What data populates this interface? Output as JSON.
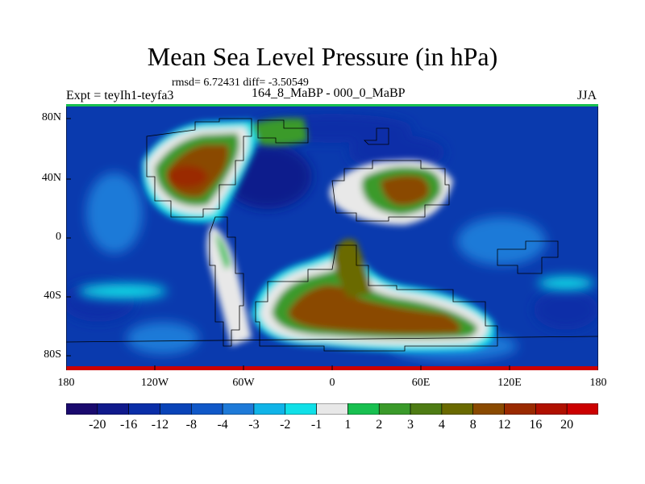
{
  "header": {
    "title": "Mean Sea Level Pressure (in hPa)",
    "stats": "rmsd= 6.72431 diff= -3.50549",
    "left_label": "Expt = teyIh1-teyfa3",
    "center_label": "164_8_MaBP - 000_0_MaBP",
    "right_label": "JJA"
  },
  "axes": {
    "lon_ticks": [
      "180",
      "120W",
      "60W",
      "0",
      "60E",
      "120E",
      "180"
    ],
    "lat_ticks": [
      "80N",
      "40N",
      "0",
      "40S",
      "80S"
    ]
  },
  "colorbar": {
    "labels": [
      "-20",
      "-16",
      "-12",
      "-8",
      "-4",
      "-3",
      "-2",
      "-1",
      "1",
      "2",
      "3",
      "4",
      "8",
      "12",
      "16",
      "20"
    ],
    "colors": [
      "#1a0a6e",
      "#101a8c",
      "#0a2ea8",
      "#0a44b8",
      "#1058c8",
      "#1e7ad8",
      "#10b4e8",
      "#10e0e8",
      "#e8e8e8",
      "#18c050",
      "#3a9a2a",
      "#4e7c14",
      "#6a6a00",
      "#8a4a00",
      "#9a2a00",
      "#b01000",
      "#cc0000"
    ]
  }
}
